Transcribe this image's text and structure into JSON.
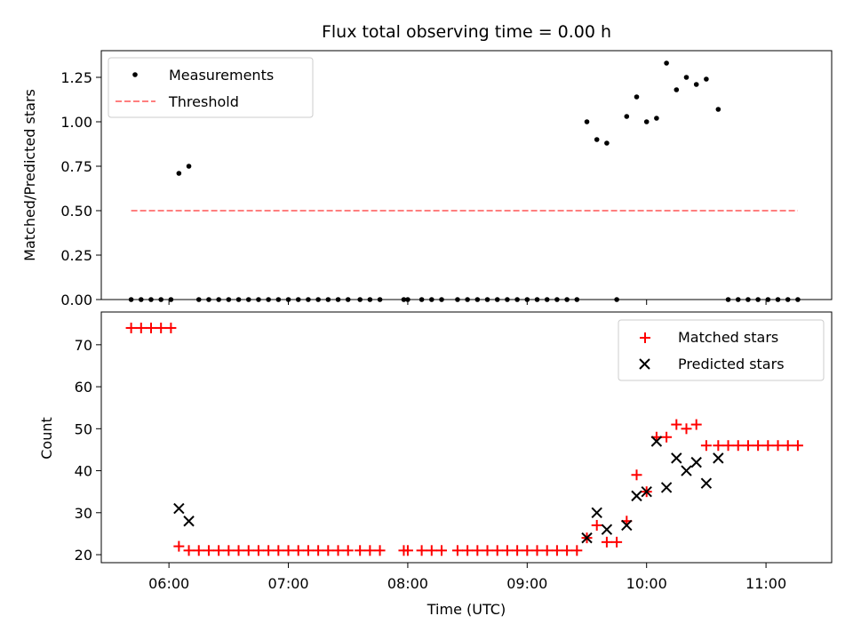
{
  "chart_data": [
    {
      "type": "scatter",
      "title": "Flux total observing time = 0.00 h",
      "xlabel": "",
      "ylabel": "Matched/Predicted stars",
      "ylim": [
        0,
        1.4
      ],
      "yticks": [
        "0.00",
        "0.25",
        "0.50",
        "0.75",
        "1.00",
        "1.25"
      ],
      "xlim": [
        "05:26",
        "11:33"
      ],
      "legend_position": "top-left",
      "series": [
        {
          "name": "Measurements",
          "style": "dot",
          "color": "#000000",
          "points": [
            [
              "05:41",
              0
            ],
            [
              "05:46",
              0
            ],
            [
              "05:51",
              0
            ],
            [
              "05:56",
              0
            ],
            [
              "06:01",
              0
            ],
            [
              "06:05",
              0.71
            ],
            [
              "06:10",
              0.75
            ],
            [
              "06:15",
              0
            ],
            [
              "06:20",
              0
            ],
            [
              "06:25",
              0
            ],
            [
              "06:30",
              0
            ],
            [
              "06:35",
              0
            ],
            [
              "06:40",
              0
            ],
            [
              "06:45",
              0
            ],
            [
              "06:50",
              0
            ],
            [
              "06:55",
              0
            ],
            [
              "07:00",
              0
            ],
            [
              "07:05",
              0
            ],
            [
              "07:10",
              0
            ],
            [
              "07:15",
              0
            ],
            [
              "07:20",
              0
            ],
            [
              "07:25",
              0
            ],
            [
              "07:30",
              0
            ],
            [
              "07:36",
              0
            ],
            [
              "07:41",
              0
            ],
            [
              "07:46",
              0
            ],
            [
              "07:58",
              0
            ],
            [
              "08:00",
              0
            ],
            [
              "08:07",
              0
            ],
            [
              "08:12",
              0
            ],
            [
              "08:17",
              0
            ],
            [
              "08:25",
              0
            ],
            [
              "08:30",
              0
            ],
            [
              "08:35",
              0
            ],
            [
              "08:40",
              0
            ],
            [
              "08:45",
              0
            ],
            [
              "08:50",
              0
            ],
            [
              "08:55",
              0
            ],
            [
              "09:00",
              0
            ],
            [
              "09:05",
              0
            ],
            [
              "09:10",
              0
            ],
            [
              "09:15",
              0
            ],
            [
              "09:20",
              0
            ],
            [
              "09:25",
              0
            ],
            [
              "09:30",
              1.0
            ],
            [
              "09:35",
              0.9
            ],
            [
              "09:40",
              0.88
            ],
            [
              "09:45",
              0
            ],
            [
              "09:50",
              1.03
            ],
            [
              "09:55",
              1.14
            ],
            [
              "10:00",
              1.0
            ],
            [
              "10:05",
              1.02
            ],
            [
              "10:10",
              1.33
            ],
            [
              "10:15",
              1.18
            ],
            [
              "10:20",
              1.25
            ],
            [
              "10:25",
              1.21
            ],
            [
              "10:30",
              1.24
            ],
            [
              "10:36",
              1.07
            ],
            [
              "10:41",
              0
            ],
            [
              "10:46",
              0
            ],
            [
              "10:51",
              0
            ],
            [
              "10:56",
              0
            ],
            [
              "11:01",
              0
            ],
            [
              "11:06",
              0
            ],
            [
              "11:11",
              0
            ],
            [
              "11:16",
              0
            ]
          ]
        },
        {
          "name": "Threshold",
          "style": "dashed-line",
          "color": "#ff7f7f",
          "points": [
            [
              "05:41",
              0.5
            ],
            [
              "11:16",
              0.5
            ]
          ]
        }
      ]
    },
    {
      "type": "scatter",
      "title": "",
      "xlabel": "Time (UTC)",
      "ylabel": "Count",
      "ylim": [
        18.1,
        77.8
      ],
      "yticks": [
        "20",
        "30",
        "40",
        "50",
        "60",
        "70"
      ],
      "xlim": [
        "05:26",
        "11:33"
      ],
      "xticks": [
        "06:00",
        "07:00",
        "08:00",
        "09:00",
        "10:00",
        "11:00"
      ],
      "legend_position": "top-right",
      "series": [
        {
          "name": "Matched stars",
          "style": "plus",
          "color": "#ff0000",
          "points": [
            [
              "05:41",
              74
            ],
            [
              "05:46",
              74
            ],
            [
              "05:51",
              74
            ],
            [
              "05:56",
              74
            ],
            [
              "06:01",
              74
            ],
            [
              "06:05",
              22
            ],
            [
              "06:10",
              21
            ],
            [
              "06:15",
              21
            ],
            [
              "06:20",
              21
            ],
            [
              "06:25",
              21
            ],
            [
              "06:30",
              21
            ],
            [
              "06:35",
              21
            ],
            [
              "06:40",
              21
            ],
            [
              "06:45",
              21
            ],
            [
              "06:50",
              21
            ],
            [
              "06:55",
              21
            ],
            [
              "07:00",
              21
            ],
            [
              "07:05",
              21
            ],
            [
              "07:10",
              21
            ],
            [
              "07:15",
              21
            ],
            [
              "07:20",
              21
            ],
            [
              "07:25",
              21
            ],
            [
              "07:30",
              21
            ],
            [
              "07:36",
              21
            ],
            [
              "07:41",
              21
            ],
            [
              "07:46",
              21
            ],
            [
              "07:58",
              21
            ],
            [
              "08:00",
              21
            ],
            [
              "08:07",
              21
            ],
            [
              "08:12",
              21
            ],
            [
              "08:17",
              21
            ],
            [
              "08:25",
              21
            ],
            [
              "08:30",
              21
            ],
            [
              "08:35",
              21
            ],
            [
              "08:40",
              21
            ],
            [
              "08:45",
              21
            ],
            [
              "08:50",
              21
            ],
            [
              "08:55",
              21
            ],
            [
              "09:00",
              21
            ],
            [
              "09:05",
              21
            ],
            [
              "09:10",
              21
            ],
            [
              "09:15",
              21
            ],
            [
              "09:20",
              21
            ],
            [
              "09:25",
              21
            ],
            [
              "09:30",
              24
            ],
            [
              "09:35",
              27
            ],
            [
              "09:40",
              23
            ],
            [
              "09:45",
              23
            ],
            [
              "09:50",
              28
            ],
            [
              "09:55",
              39
            ],
            [
              "10:00",
              35
            ],
            [
              "10:05",
              48
            ],
            [
              "10:10",
              48
            ],
            [
              "10:15",
              51
            ],
            [
              "10:20",
              50
            ],
            [
              "10:25",
              51
            ],
            [
              "10:30",
              46
            ],
            [
              "10:36",
              46
            ],
            [
              "10:41",
              46
            ],
            [
              "10:46",
              46
            ],
            [
              "10:51",
              46
            ],
            [
              "10:56",
              46
            ],
            [
              "11:01",
              46
            ],
            [
              "11:06",
              46
            ],
            [
              "11:11",
              46
            ],
            [
              "11:16",
              46
            ]
          ]
        },
        {
          "name": "Predicted stars",
          "style": "x",
          "color": "#000000",
          "points": [
            [
              "06:05",
              31
            ],
            [
              "06:10",
              28
            ],
            [
              "09:30",
              24
            ],
            [
              "09:35",
              30
            ],
            [
              "09:40",
              26
            ],
            [
              "09:50",
              27
            ],
            [
              "09:55",
              34
            ],
            [
              "10:00",
              35
            ],
            [
              "10:05",
              47
            ],
            [
              "10:10",
              36
            ],
            [
              "10:15",
              43
            ],
            [
              "10:20",
              40
            ],
            [
              "10:25",
              42
            ],
            [
              "10:30",
              37
            ],
            [
              "10:36",
              43
            ]
          ]
        }
      ]
    }
  ]
}
